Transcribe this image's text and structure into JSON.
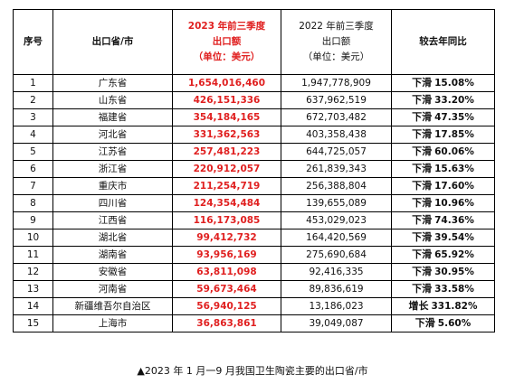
{
  "table": {
    "headers": {
      "index": "序号",
      "province": "出口省/市",
      "y2023": [
        "2023 年前三季度",
        "出口额",
        "（单位：美元）"
      ],
      "y2022": [
        "2022 年前三季度",
        "出口额",
        "（单位：美元）"
      ],
      "compare": "较去年同比"
    },
    "rows": [
      {
        "index": "1",
        "province": "广东省",
        "y2023": "1,654,016,460",
        "y2022": "1,947,778,909",
        "dir": "下滑",
        "pct": "15.08%"
      },
      {
        "index": "2",
        "province": "山东省",
        "y2023": "426,151,336",
        "y2022": "637,962,519",
        "dir": "下滑",
        "pct": "33.20%"
      },
      {
        "index": "3",
        "province": "福建省",
        "y2023": "354,184,165",
        "y2022": "672,703,482",
        "dir": "下滑",
        "pct": "47.35%"
      },
      {
        "index": "4",
        "province": "河北省",
        "y2023": "331,362,563",
        "y2022": "403,358,438",
        "dir": "下滑",
        "pct": "17.85%"
      },
      {
        "index": "5",
        "province": "江苏省",
        "y2023": "257,481,223",
        "y2022": "644,725,057",
        "dir": "下滑",
        "pct": "60.06%"
      },
      {
        "index": "6",
        "province": "浙江省",
        "y2023": "220,912,057",
        "y2022": "261,839,343",
        "dir": "下滑",
        "pct": "15.63%"
      },
      {
        "index": "7",
        "province": "重庆市",
        "y2023": "211,254,719",
        "y2022": "256,388,804",
        "dir": "下滑",
        "pct": "17.60%"
      },
      {
        "index": "8",
        "province": "四川省",
        "y2023": "124,354,484",
        "y2022": "139,655,089",
        "dir": "下滑",
        "pct": "10.96%"
      },
      {
        "index": "9",
        "province": "江西省",
        "y2023": "116,173,085",
        "y2022": "453,029,023",
        "dir": "下滑",
        "pct": "74.36%"
      },
      {
        "index": "10",
        "province": "湖北省",
        "y2023": "99,412,732",
        "y2022": "164,420,569",
        "dir": "下滑",
        "pct": "39.54%"
      },
      {
        "index": "11",
        "province": "湖南省",
        "y2023": "93,956,169",
        "y2022": "275,690,684",
        "dir": "下滑",
        "pct": "65.92%"
      },
      {
        "index": "12",
        "province": "安徽省",
        "y2023": "63,811,098",
        "y2022": "92,416,335",
        "dir": "下滑",
        "pct": "30.95%"
      },
      {
        "index": "13",
        "province": "河南省",
        "y2023": "59,673,464",
        "y2022": "89,836,619",
        "dir": "下滑",
        "pct": "33.58%"
      },
      {
        "index": "14",
        "province": "新疆维吾尔自治区",
        "y2023": "56,940,125",
        "y2022": "13,186,023",
        "dir": "增长",
        "pct": "331.82%"
      },
      {
        "index": "15",
        "province": "上海市",
        "y2023": "36,863,861",
        "y2022": "39,049,087",
        "dir": "下滑",
        "pct": "5.60%"
      }
    ]
  },
  "caption": "▲2023 年 1 月一9 月我国卫生陶瓷主要的出口省/市"
}
